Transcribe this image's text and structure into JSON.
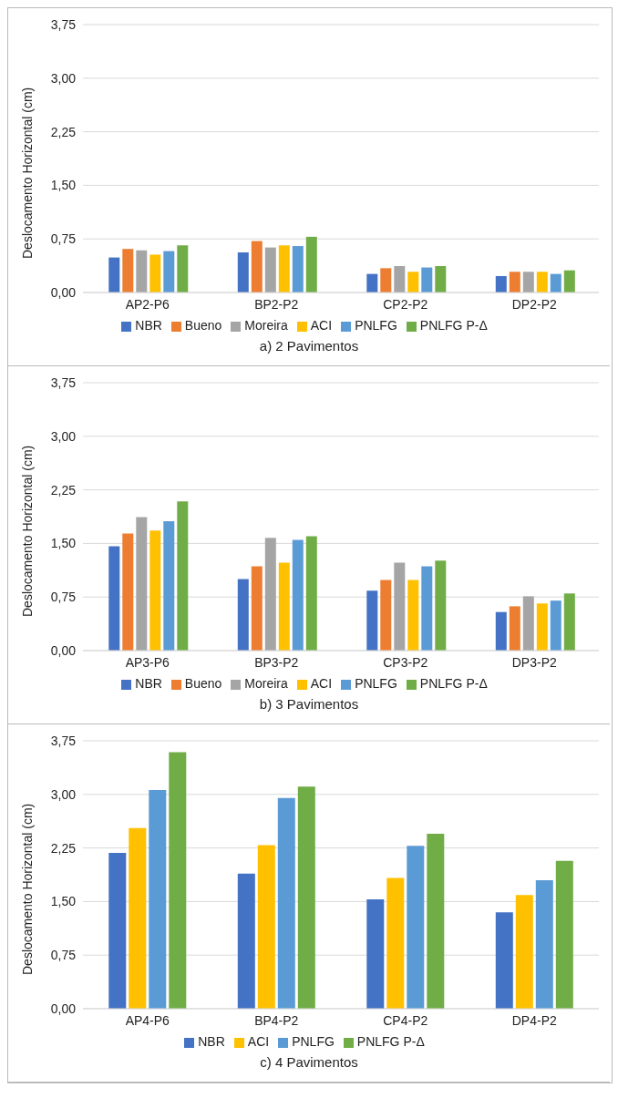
{
  "chart_data": [
    {
      "type": "bar",
      "title": "a) 2 Pavimentos",
      "ylabel": "Deslocamento  Horizontal  (cm)",
      "categories": [
        "AP2-P6",
        "BP2-P2",
        "CP2-P2",
        "DP2-P2"
      ],
      "series": [
        {
          "name": "NBR",
          "color": "#4472c4",
          "values": [
            0.49,
            0.56,
            0.26,
            0.23
          ]
        },
        {
          "name": "Bueno",
          "color": "#ed7d31",
          "values": [
            0.61,
            0.72,
            0.34,
            0.29
          ]
        },
        {
          "name": "Moreira",
          "color": "#a5a5a5",
          "values": [
            0.59,
            0.63,
            0.37,
            0.29
          ]
        },
        {
          "name": "ACI",
          "color": "#ffc000",
          "values": [
            0.53,
            0.66,
            0.29,
            0.29
          ]
        },
        {
          "name": "PNLFG",
          "color": "#5b9bd5",
          "values": [
            0.58,
            0.65,
            0.35,
            0.26
          ]
        },
        {
          "name": "PNLFG P-Δ",
          "color": "#70ad47",
          "values": [
            0.66,
            0.78,
            0.37,
            0.31
          ]
        }
      ],
      "ylim": [
        0,
        3.75
      ],
      "yticks": [
        {
          "value": 0,
          "label": "0,00"
        },
        {
          "value": 0.75,
          "label": "0,75"
        },
        {
          "value": 1.5,
          "label": "1,50"
        },
        {
          "value": 2.25,
          "label": "2,25"
        },
        {
          "value": 3,
          "label": "3,00"
        },
        {
          "value": 3.75,
          "label": "3,75"
        }
      ],
      "grid": "y",
      "legend": "bottom"
    },
    {
      "type": "bar",
      "title": "b) 3 Pavimentos",
      "ylabel": "Deslocamento  Horizontal  (cm)",
      "categories": [
        "AP3-P6",
        "BP3-P2",
        "CP3-P2",
        "DP3-P2"
      ],
      "series": [
        {
          "name": "NBR",
          "color": "#4472c4",
          "values": [
            1.46,
            1.0,
            0.84,
            0.54
          ]
        },
        {
          "name": "Bueno",
          "color": "#ed7d31",
          "values": [
            1.64,
            1.18,
            0.99,
            0.62
          ]
        },
        {
          "name": "Moreira",
          "color": "#a5a5a5",
          "values": [
            1.87,
            1.58,
            1.23,
            0.76
          ]
        },
        {
          "name": "ACI",
          "color": "#ffc000",
          "values": [
            1.68,
            1.23,
            0.99,
            0.66
          ]
        },
        {
          "name": "PNLFG",
          "color": "#5b9bd5",
          "values": [
            1.81,
            1.55,
            1.18,
            0.7
          ]
        },
        {
          "name": "PNLFG P-Δ",
          "color": "#70ad47",
          "values": [
            2.09,
            1.6,
            1.26,
            0.8
          ]
        }
      ],
      "ylim": [
        0,
        3.75
      ],
      "yticks": [
        {
          "value": 0,
          "label": "0,00"
        },
        {
          "value": 0.75,
          "label": "0,75"
        },
        {
          "value": 1.5,
          "label": "1,50"
        },
        {
          "value": 2.25,
          "label": "2,25"
        },
        {
          "value": 3,
          "label": "3,00"
        },
        {
          "value": 3.75,
          "label": "3,75"
        }
      ],
      "grid": "y",
      "legend": "bottom"
    },
    {
      "type": "bar",
      "title": "c) 4 Pavimentos",
      "ylabel": "Deslocamento  Horizontal  (cm)",
      "categories": [
        "AP4-P6",
        "BP4-P2",
        "CP4-P2",
        "DP4-P2"
      ],
      "series": [
        {
          "name": "NBR",
          "color": "#4472c4",
          "values": [
            2.18,
            1.89,
            1.53,
            1.35
          ]
        },
        {
          "name": "ACI",
          "color": "#ffc000",
          "values": [
            2.53,
            2.29,
            1.83,
            1.59
          ]
        },
        {
          "name": "PNLFG",
          "color": "#5b9bd5",
          "values": [
            3.06,
            2.95,
            2.28,
            1.8
          ]
        },
        {
          "name": "PNLFG P-Δ",
          "color": "#70ad47",
          "values": [
            3.59,
            3.11,
            2.45,
            2.07
          ]
        }
      ],
      "ylim": [
        0,
        3.75
      ],
      "yticks": [
        {
          "value": 0,
          "label": "0,00"
        },
        {
          "value": 0.75,
          "label": "0,75"
        },
        {
          "value": 1.5,
          "label": "1,50"
        },
        {
          "value": 2.25,
          "label": "2,25"
        },
        {
          "value": 3,
          "label": "3,00"
        },
        {
          "value": 3.75,
          "label": "3,75"
        }
      ],
      "grid": "y",
      "legend": "bottom"
    }
  ]
}
